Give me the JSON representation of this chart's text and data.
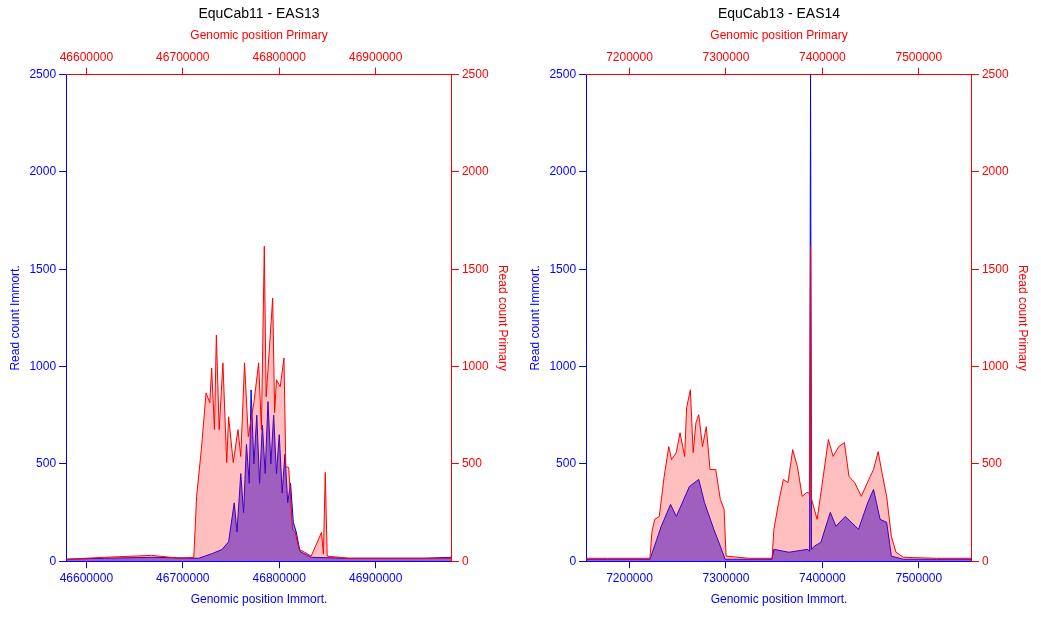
{
  "chart_data": [
    {
      "type": "area",
      "title": "EquCab11 - EAS13",
      "xlabel": "Genomic position Immort.",
      "x2label": "Genomic position Primary",
      "ylabel": "Read count Immort.",
      "y2label": "Read count Primary",
      "xlim": [
        46579000,
        46979000
      ],
      "xticks": [
        46600000,
        46700000,
        46800000,
        46900000
      ],
      "x2lim": [
        46579000,
        46979000
      ],
      "x2ticks": [
        46600000,
        46700000,
        46800000,
        46900000
      ],
      "ylim": [
        0,
        2500
      ],
      "yticks": [
        0,
        500,
        1000,
        1500,
        2000,
        2500
      ],
      "y2lim": [
        0,
        2500
      ],
      "y2ticks": [
        0,
        500,
        1000,
        1500,
        2000,
        2500
      ],
      "grid": false,
      "legend": false,
      "series": [
        {
          "color": "#0000ff",
          "x": [
            46579000,
            46618900,
            46667600,
            46716300,
            46730900,
            46740600,
            46747500,
            46753300,
            46756200,
            46760100,
            46763000,
            46766000,
            46768900,
            46770800,
            46773700,
            46776700,
            46779600,
            46782500,
            46785400,
            46788300,
            46791300,
            46794200,
            46797100,
            46800000,
            46803000,
            46805900,
            46808800,
            46811700,
            46814600,
            46817600,
            46821500,
            46833100,
            46872100,
            46911000,
            46950000,
            46978200
          ],
          "values": [
            10,
            15,
            20,
            15,
            40,
            60,
            100,
            300,
            150,
            450,
            250,
            600,
            400,
            880,
            500,
            750,
            400,
            700,
            450,
            820,
            500,
            750,
            450,
            650,
            350,
            550,
            300,
            400,
            200,
            150,
            50,
            20,
            15,
            15,
            15,
            20
          ]
        },
        {
          "color": "#ff0000",
          "axis": "y2",
          "x": [
            46579000,
            46618900,
            46667600,
            46696800,
            46711400,
            46714300,
            46719200,
            46724100,
            46728000,
            46729900,
            46732800,
            46734800,
            46737700,
            46741600,
            46745500,
            46747500,
            46752300,
            46757200,
            46760100,
            46764000,
            46767900,
            46773700,
            46778600,
            46781500,
            46784500,
            46786400,
            46788300,
            46793200,
            46795200,
            46797100,
            46801000,
            46804900,
            46806800,
            46809800,
            46813700,
            46816600,
            46820500,
            46826300,
            46833100,
            46843800,
            46845800,
            46847700,
            46849700,
            46872100,
            46911000,
            46950000,
            46978200
          ],
          "values": [
            10,
            20,
            30,
            15,
            20,
            333,
            573,
            865,
            814,
            993,
            676,
            1162,
            676,
            1019,
            507,
            742,
            507,
            676,
            538,
            1019,
            640,
            814,
            1019,
            676,
            1618,
            845,
            983,
            1352,
            763,
            932,
            896,
            1044,
            486,
            481,
            164,
            148,
            61,
            46,
            26,
            148,
            36,
            456,
            26,
            15,
            15,
            15,
            15
          ]
        }
      ]
    },
    {
      "type": "area",
      "title": "EquCab13 - EAS14",
      "xlabel": "Genomic position Immort.",
      "x2label": "Genomic position Primary",
      "ylabel": "Read count Immort.",
      "y2label": "Read count Primary",
      "xlim": [
        7155000,
        7555000
      ],
      "xticks": [
        7200000,
        7300000,
        7400000,
        7500000
      ],
      "x2lim": [
        7155000,
        7555000
      ],
      "x2ticks": [
        7200000,
        7300000,
        7400000,
        7500000
      ],
      "ylim": [
        0,
        2500
      ],
      "yticks": [
        0,
        500,
        1000,
        1500,
        2000,
        2500
      ],
      "y2lim": [
        0,
        2500
      ],
      "y2ticks": [
        0,
        500,
        1000,
        1500,
        2000,
        2500
      ],
      "grid": false,
      "legend": false,
      "series": [
        {
          "color": "#0000ff",
          "x": [
            7155000,
            7177400,
            7221200,
            7224100,
            7232900,
            7242600,
            7248500,
            7262100,
            7271800,
            7277700,
            7287400,
            7294200,
            7299100,
            7300100,
            7323500,
            7347800,
            7349700,
            7365300,
            7384800,
            7386700,
            7387700,
            7388700,
            7391600,
            7398400,
            7408200,
            7414000,
            7423700,
            7437400,
            7447100,
            7453000,
            7459800,
            7466600,
            7471500,
            7484100,
            7518200,
            7555000
          ],
          "values": [
            10,
            10,
            10,
            51,
            179,
            292,
            230,
            384,
            420,
            302,
            164,
            77,
            10,
            10,
            10,
            10,
            61,
            46,
            61,
            50,
            2500,
            60,
            77,
            97,
            251,
            179,
            230,
            164,
            302,
            369,
            215,
            200,
            26,
            10,
            10,
            10
          ]
        },
        {
          "color": "#ff0000",
          "axis": "y2",
          "x": [
            7155000,
            7177400,
            7221200,
            7223200,
            7226100,
            7230900,
            7235800,
            7240700,
            7243600,
            7248500,
            7252400,
            7257200,
            7259200,
            7263100,
            7266000,
            7268900,
            7271800,
            7275700,
            7279600,
            7283500,
            7289400,
            7294200,
            7298100,
            7300100,
            7323500,
            7347800,
            7349700,
            7354600,
            7359500,
            7364300,
            7369200,
            7374100,
            7379000,
            7383800,
            7386700,
            7387700,
            7388700,
            7389700,
            7394500,
            7399400,
            7406200,
            7411100,
            7416900,
            7422800,
            7427600,
            7433500,
            7440300,
            7448100,
            7453000,
            7457800,
            7461700,
            7466600,
            7471500,
            7476300,
            7484100,
            7518200,
            7555000
          ],
          "values": [
            15,
            15,
            15,
            148,
            215,
            230,
            430,
            589,
            522,
            558,
            660,
            538,
            788,
            881,
            558,
            712,
            753,
            589,
            691,
            471,
            471,
            317,
            266,
            26,
            15,
            15,
            164,
            302,
            420,
            404,
            573,
            486,
            333,
            353,
            350,
            1620,
            320,
            302,
            215,
            384,
            625,
            538,
            589,
            609,
            435,
            404,
            333,
            420,
            471,
            563,
            456,
            333,
            128,
            46,
            20,
            15,
            15
          ]
        }
      ]
    }
  ]
}
